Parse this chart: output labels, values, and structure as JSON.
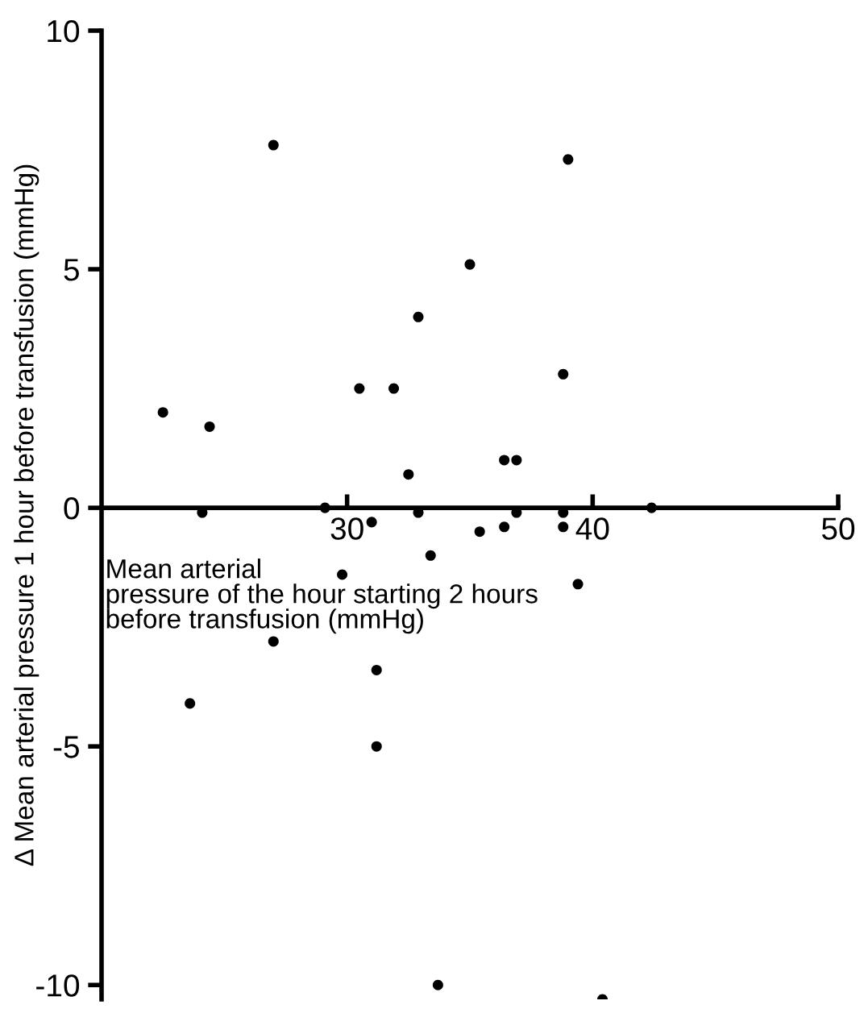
{
  "chart_data": {
    "type": "scatter",
    "xlabel": "Mean arterial\npressure of the hour starting 2 hours\nbefore transfusion (mmHg)",
    "ylabel": "Δ Mean arterial pressure 1 hour before transfusion (mmHg)",
    "xlim": [
      20,
      50
    ],
    "xticks": [
      30,
      40,
      50
    ],
    "ylim": [
      -10.3,
      10
    ],
    "yticks": [
      -10,
      -5,
      0,
      5,
      10
    ],
    "grid": false,
    "marker": "circle",
    "series": [
      {
        "color": "#000000",
        "x": [
          27.0,
          39.0,
          35.0,
          32.9,
          38.8,
          30.5,
          31.9,
          22.5,
          24.4,
          36.4,
          36.9,
          32.5,
          24.1,
          29.1,
          32.9,
          36.9,
          38.8,
          42.4,
          31.0,
          35.4,
          36.4,
          38.8,
          33.4,
          29.8,
          39.4,
          27.0,
          31.2,
          23.6,
          31.2,
          33.7,
          40.4
        ],
        "values": [
          7.6,
          7.3,
          5.1,
          4.0,
          2.8,
          2.5,
          2.5,
          2.0,
          1.7,
          1.0,
          1.0,
          0.7,
          -0.1,
          0.0,
          -0.1,
          -0.1,
          -0.1,
          0.0,
          -0.3,
          -0.5,
          -0.4,
          -0.4,
          -1.0,
          -1.4,
          -1.6,
          -2.8,
          -3.4,
          -4.1,
          -5.0,
          -10.0,
          -10.3
        ]
      }
    ]
  }
}
